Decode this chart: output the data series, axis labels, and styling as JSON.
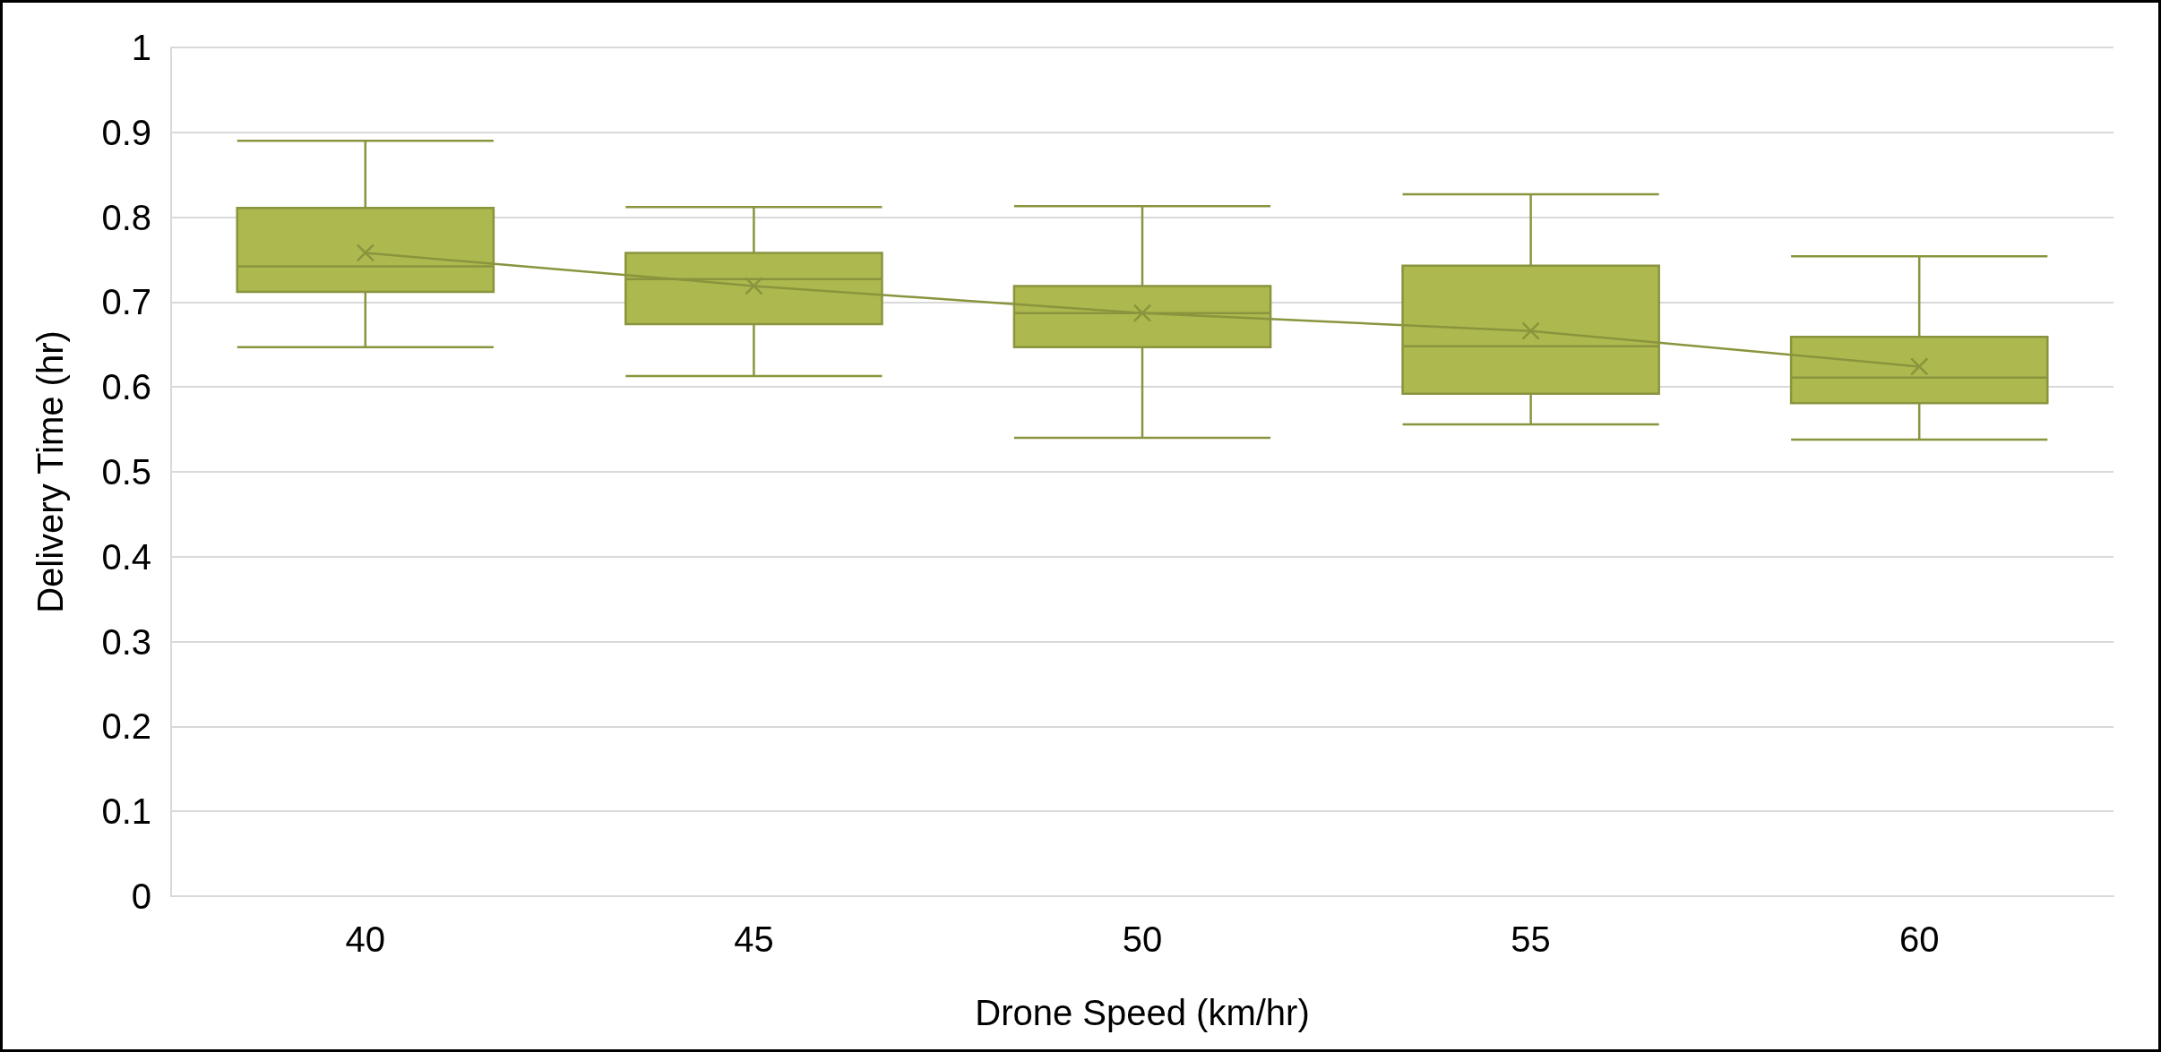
{
  "chart_data": {
    "type": "box",
    "xlabel": "Drone Speed (km/hr)",
    "ylabel": "Delivery Time (hr)",
    "categories": [
      "40",
      "45",
      "50",
      "55",
      "60"
    ],
    "boxes": [
      {
        "low": 0.647,
        "q1": 0.712,
        "median": 0.742,
        "q3": 0.811,
        "high": 0.89
      },
      {
        "low": 0.613,
        "q1": 0.674,
        "median": 0.727,
        "q3": 0.758,
        "high": 0.812
      },
      {
        "low": 0.54,
        "q1": 0.647,
        "median": 0.687,
        "q3": 0.719,
        "high": 0.813
      },
      {
        "low": 0.556,
        "q1": 0.592,
        "median": 0.648,
        "q3": 0.743,
        "high": 0.827
      },
      {
        "low": 0.538,
        "q1": 0.581,
        "median": 0.611,
        "q3": 0.659,
        "high": 0.754
      }
    ],
    "series": [
      {
        "type": "line",
        "color": "#8a943e",
        "values": [
          0.758,
          0.719,
          0.687,
          0.666,
          0.624
        ]
      }
    ],
    "color": "#adb94e",
    "ylim": [
      0,
      1
    ],
    "yticks": [
      0,
      0.1,
      0.2,
      0.3,
      0.4,
      0.5,
      0.6,
      0.7,
      0.8,
      0.9,
      1
    ],
    "grid": "y",
    "marker": "cross"
  }
}
